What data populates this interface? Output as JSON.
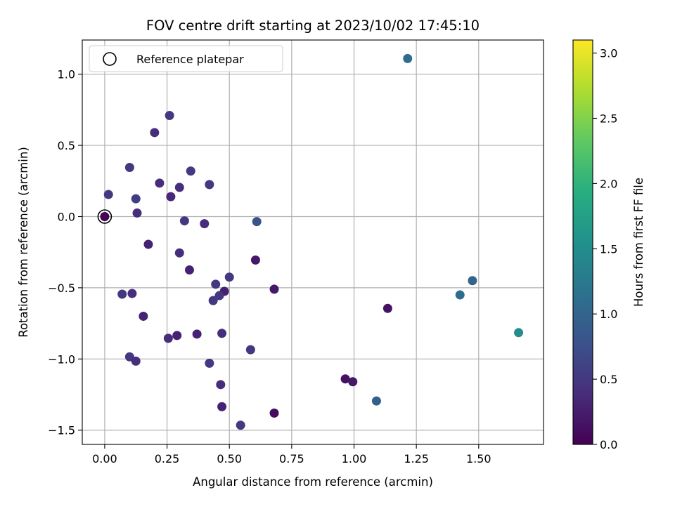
{
  "chart_data": {
    "type": "scatter",
    "title": "FOV centre drift starting at 2023/10/02 17:45:10",
    "xlabel": "Angular distance from reference (arcmin)",
    "ylabel": "Rotation from reference (arcmin)",
    "xlim": [
      -0.09,
      1.76
    ],
    "ylim": [
      -1.6,
      1.24
    ],
    "xticks": [
      "0.00",
      "0.25",
      "0.50",
      "0.75",
      "1.00",
      "1.25",
      "1.50"
    ],
    "xtick_values": [
      0,
      0.25,
      0.5,
      0.75,
      1.0,
      1.25,
      1.5
    ],
    "yticks": [
      "1.0",
      "0.5",
      "0.0",
      "−0.5",
      "−1.0",
      "−1.5"
    ],
    "ytick_values": [
      1.0,
      0.5,
      0.0,
      -0.5,
      -1.0,
      -1.5
    ],
    "grid": true,
    "legend": {
      "position": "top-left",
      "entries": [
        "Reference platepar"
      ]
    },
    "reference_point": {
      "x": 0.0,
      "y": 0.0
    },
    "colorbar": {
      "label": "Hours from first FF file",
      "colormap": "viridis",
      "range": [
        0.0,
        3.1
      ],
      "ticks": [
        "0.0",
        "0.5",
        "1.0",
        "1.5",
        "2.0",
        "2.5",
        "3.0"
      ],
      "tick_values": [
        0.0,
        0.5,
        1.0,
        1.5,
        2.0,
        2.5,
        3.0
      ]
    },
    "points": [
      {
        "x": 0.0,
        "y": 0.0,
        "c": 0.0
      },
      {
        "x": 0.015,
        "y": 0.155,
        "c": 0.5
      },
      {
        "x": 0.1,
        "y": 0.345,
        "c": 0.5
      },
      {
        "x": 0.125,
        "y": 0.125,
        "c": 0.55
      },
      {
        "x": 0.13,
        "y": 0.025,
        "c": 0.4
      },
      {
        "x": 0.2,
        "y": 0.59,
        "c": 0.4
      },
      {
        "x": 0.22,
        "y": 0.235,
        "c": 0.4
      },
      {
        "x": 0.26,
        "y": 0.71,
        "c": 0.5
      },
      {
        "x": 0.265,
        "y": 0.14,
        "c": 0.35
      },
      {
        "x": 0.3,
        "y": 0.205,
        "c": 0.4
      },
      {
        "x": 0.345,
        "y": 0.32,
        "c": 0.5
      },
      {
        "x": 0.42,
        "y": 0.225,
        "c": 0.5
      },
      {
        "x": 0.32,
        "y": -0.03,
        "c": 0.5
      },
      {
        "x": 0.4,
        "y": -0.05,
        "c": 0.4
      },
      {
        "x": 0.61,
        "y": -0.035,
        "c": 0.8
      },
      {
        "x": 0.175,
        "y": -0.195,
        "c": 0.3
      },
      {
        "x": 0.3,
        "y": -0.255,
        "c": 0.4
      },
      {
        "x": 0.34,
        "y": -0.375,
        "c": 0.3
      },
      {
        "x": 0.5,
        "y": -0.425,
        "c": 0.5
      },
      {
        "x": 0.605,
        "y": -0.305,
        "c": 0.2
      },
      {
        "x": 0.445,
        "y": -0.475,
        "c": 0.5
      },
      {
        "x": 0.48,
        "y": -0.525,
        "c": 0.3
      },
      {
        "x": 0.46,
        "y": -0.555,
        "c": 0.5
      },
      {
        "x": 0.435,
        "y": -0.59,
        "c": 0.5
      },
      {
        "x": 0.68,
        "y": -0.51,
        "c": 0.2
      },
      {
        "x": 0.07,
        "y": -0.545,
        "c": 0.5
      },
      {
        "x": 0.11,
        "y": -0.54,
        "c": 0.4
      },
      {
        "x": 1.135,
        "y": -0.645,
        "c": 0.15
      },
      {
        "x": 1.425,
        "y": -0.55,
        "c": 1.1
      },
      {
        "x": 1.475,
        "y": -0.45,
        "c": 1.0
      },
      {
        "x": 1.66,
        "y": -0.815,
        "c": 1.5
      },
      {
        "x": 1.215,
        "y": 1.11,
        "c": 1.1
      },
      {
        "x": 0.155,
        "y": -0.7,
        "c": 0.3
      },
      {
        "x": 0.255,
        "y": -0.855,
        "c": 0.4
      },
      {
        "x": 0.29,
        "y": -0.835,
        "c": 0.3
      },
      {
        "x": 0.37,
        "y": -0.825,
        "c": 0.3
      },
      {
        "x": 0.47,
        "y": -0.82,
        "c": 0.4
      },
      {
        "x": 0.585,
        "y": -0.935,
        "c": 0.5
      },
      {
        "x": 0.1,
        "y": -0.985,
        "c": 0.5
      },
      {
        "x": 0.125,
        "y": -1.015,
        "c": 0.4
      },
      {
        "x": 0.42,
        "y": -1.03,
        "c": 0.5
      },
      {
        "x": 0.465,
        "y": -1.18,
        "c": 0.4
      },
      {
        "x": 0.47,
        "y": -1.335,
        "c": 0.3
      },
      {
        "x": 0.545,
        "y": -1.465,
        "c": 0.5
      },
      {
        "x": 0.68,
        "y": -1.38,
        "c": 0.1
      },
      {
        "x": 0.965,
        "y": -1.14,
        "c": 0.15
      },
      {
        "x": 0.995,
        "y": -1.16,
        "c": 0.2
      },
      {
        "x": 1.09,
        "y": -1.295,
        "c": 0.95
      }
    ]
  }
}
